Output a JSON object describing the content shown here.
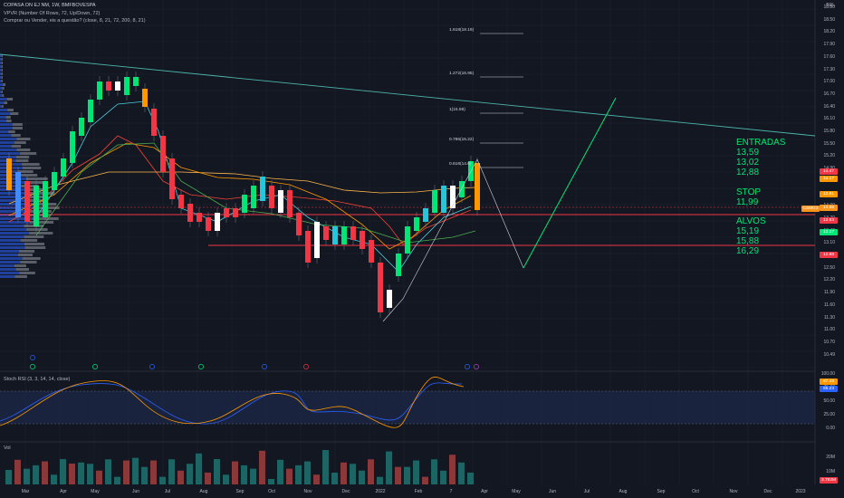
{
  "header": {
    "symbol_line": "COPASA ON EJ NM, 1W, BMFBOVESPA",
    "indicator_vpvr": "VPVR (Number Of Rows, 72, Up/Down, 72)",
    "indicator_ma": "Comprar ou Vender, eis a questão? (close, 8, 21, 72, 200, 8, 21)",
    "currency": "BRL"
  },
  "price_axis_labels": [
    "18.80",
    "18.50",
    "18.20",
    "17.90",
    "17.60",
    "17.30",
    "17.00",
    "16.70",
    "16.40",
    "16.10",
    "15.80",
    "15.50",
    "15.20",
    "14.90",
    "14.60",
    "14.30",
    "14.00",
    "13.70",
    "13.40",
    "13.10",
    "12.80",
    "12.50",
    "12.20",
    "11.90",
    "11.60",
    "11.30",
    "11.00",
    "10.70",
    "10.49"
  ],
  "price_tags": [
    {
      "label": "14.47",
      "color": "#f23645",
      "y": 189
    },
    {
      "label": "14.17",
      "color": "#ff9800",
      "y": 197
    },
    {
      "label": "13.81",
      "color": "#ff9800",
      "y": 214
    },
    {
      "label": "13.68",
      "color": "#f7931a",
      "y": 229
    },
    {
      "label": "13.53",
      "color": "#f23645",
      "y": 243
    },
    {
      "label": "13.17",
      "color": "#00e676",
      "y": 256
    },
    {
      "label": "12.88",
      "color": "#f23645",
      "y": 281
    }
  ],
  "symbol_tag": "CSMG3",
  "fib_levels": [
    {
      "label": "1.618(18.19)",
      "y": 37
    },
    {
      "label": "1.272(16.95)",
      "y": 85
    },
    {
      "label": "1(15.98)",
      "y": 125
    },
    {
      "label": "0.786(15.22)",
      "y": 158
    },
    {
      "label": "0.618(14.6)",
      "y": 185
    }
  ],
  "annotations": {
    "entradas_title": "ENTRADAS",
    "entradas": [
      "13,59",
      "13,02",
      "12,88"
    ],
    "stop_title": "STOP",
    "stop": "11,99",
    "alvos_title": "ALVOS",
    "alvos": [
      "15,19",
      "15,88",
      "16,29"
    ]
  },
  "stoch": {
    "label": "Stoch RSI (3, 3, 14, 14, close)",
    "axis": [
      "100.00",
      "75.00",
      "50.00",
      "25.00",
      "0.00"
    ],
    "values": [
      "87.49",
      "85.23"
    ]
  },
  "volume": {
    "label": "Vol",
    "axis": [
      "20M",
      "10M"
    ],
    "value": "3.782M"
  },
  "time_axis": [
    "Mar",
    "Apr",
    "May",
    "Jun",
    "Jul",
    "Aug",
    "Sep",
    "Oct",
    "Nov",
    "Dec",
    "2022",
    "Feb",
    "7",
    "Apr",
    "May",
    "Jun",
    "Jul",
    "Aug",
    "Sep",
    "Oct",
    "Nov",
    "Dec",
    "2023"
  ],
  "colors": {
    "bg": "#131722",
    "bull_bright": "#00e676",
    "bear": "#f23645",
    "cyan": "#26c6da",
    "white_candle": "#ffffff",
    "orange": "#ff9800",
    "ma_cyan": "#4dd0e1",
    "ma_green": "#4caf50",
    "ma_red": "#f44336",
    "trend_teal": "#4db6ac"
  }
}
